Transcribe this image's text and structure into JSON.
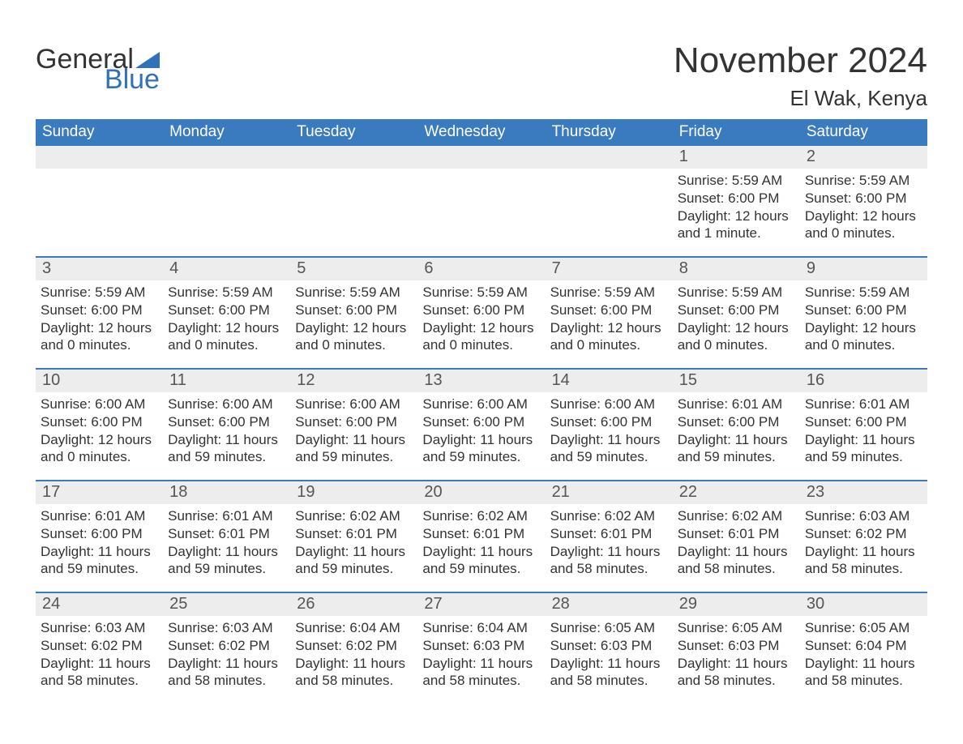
{
  "brand": {
    "word1": "General",
    "word2": "Blue"
  },
  "colors": {
    "accent": "#3a7bbf",
    "logo_blue": "#2f72b9",
    "header_text": "#ffffff",
    "text": "#333333",
    "daynum_bg": "#ededed",
    "daynum_text": "#555555",
    "background": "#ffffff"
  },
  "fonts": {
    "month_title_size": 44,
    "location_size": 26,
    "weekday_size": 19,
    "daynum_size": 20,
    "body_size": 17,
    "logo_size": 34
  },
  "title": "November 2024",
  "location": "El Wak, Kenya",
  "weekdays": [
    "Sunday",
    "Monday",
    "Tuesday",
    "Wednesday",
    "Thursday",
    "Friday",
    "Saturday"
  ],
  "weeks": [
    [
      {
        "day": "",
        "sunrise": "",
        "sunset": "",
        "daylight": ""
      },
      {
        "day": "",
        "sunrise": "",
        "sunset": "",
        "daylight": ""
      },
      {
        "day": "",
        "sunrise": "",
        "sunset": "",
        "daylight": ""
      },
      {
        "day": "",
        "sunrise": "",
        "sunset": "",
        "daylight": ""
      },
      {
        "day": "",
        "sunrise": "",
        "sunset": "",
        "daylight": ""
      },
      {
        "day": "1",
        "sunrise": "Sunrise: 5:59 AM",
        "sunset": "Sunset: 6:00 PM",
        "daylight": "Daylight: 12 hours and 1 minute."
      },
      {
        "day": "2",
        "sunrise": "Sunrise: 5:59 AM",
        "sunset": "Sunset: 6:00 PM",
        "daylight": "Daylight: 12 hours and 0 minutes."
      }
    ],
    [
      {
        "day": "3",
        "sunrise": "Sunrise: 5:59 AM",
        "sunset": "Sunset: 6:00 PM",
        "daylight": "Daylight: 12 hours and 0 minutes."
      },
      {
        "day": "4",
        "sunrise": "Sunrise: 5:59 AM",
        "sunset": "Sunset: 6:00 PM",
        "daylight": "Daylight: 12 hours and 0 minutes."
      },
      {
        "day": "5",
        "sunrise": "Sunrise: 5:59 AM",
        "sunset": "Sunset: 6:00 PM",
        "daylight": "Daylight: 12 hours and 0 minutes."
      },
      {
        "day": "6",
        "sunrise": "Sunrise: 5:59 AM",
        "sunset": "Sunset: 6:00 PM",
        "daylight": "Daylight: 12 hours and 0 minutes."
      },
      {
        "day": "7",
        "sunrise": "Sunrise: 5:59 AM",
        "sunset": "Sunset: 6:00 PM",
        "daylight": "Daylight: 12 hours and 0 minutes."
      },
      {
        "day": "8",
        "sunrise": "Sunrise: 5:59 AM",
        "sunset": "Sunset: 6:00 PM",
        "daylight": "Daylight: 12 hours and 0 minutes."
      },
      {
        "day": "9",
        "sunrise": "Sunrise: 5:59 AM",
        "sunset": "Sunset: 6:00 PM",
        "daylight": "Daylight: 12 hours and 0 minutes."
      }
    ],
    [
      {
        "day": "10",
        "sunrise": "Sunrise: 6:00 AM",
        "sunset": "Sunset: 6:00 PM",
        "daylight": "Daylight: 12 hours and 0 minutes."
      },
      {
        "day": "11",
        "sunrise": "Sunrise: 6:00 AM",
        "sunset": "Sunset: 6:00 PM",
        "daylight": "Daylight: 11 hours and 59 minutes."
      },
      {
        "day": "12",
        "sunrise": "Sunrise: 6:00 AM",
        "sunset": "Sunset: 6:00 PM",
        "daylight": "Daylight: 11 hours and 59 minutes."
      },
      {
        "day": "13",
        "sunrise": "Sunrise: 6:00 AM",
        "sunset": "Sunset: 6:00 PM",
        "daylight": "Daylight: 11 hours and 59 minutes."
      },
      {
        "day": "14",
        "sunrise": "Sunrise: 6:00 AM",
        "sunset": "Sunset: 6:00 PM",
        "daylight": "Daylight: 11 hours and 59 minutes."
      },
      {
        "day": "15",
        "sunrise": "Sunrise: 6:01 AM",
        "sunset": "Sunset: 6:00 PM",
        "daylight": "Daylight: 11 hours and 59 minutes."
      },
      {
        "day": "16",
        "sunrise": "Sunrise: 6:01 AM",
        "sunset": "Sunset: 6:00 PM",
        "daylight": "Daylight: 11 hours and 59 minutes."
      }
    ],
    [
      {
        "day": "17",
        "sunrise": "Sunrise: 6:01 AM",
        "sunset": "Sunset: 6:00 PM",
        "daylight": "Daylight: 11 hours and 59 minutes."
      },
      {
        "day": "18",
        "sunrise": "Sunrise: 6:01 AM",
        "sunset": "Sunset: 6:01 PM",
        "daylight": "Daylight: 11 hours and 59 minutes."
      },
      {
        "day": "19",
        "sunrise": "Sunrise: 6:02 AM",
        "sunset": "Sunset: 6:01 PM",
        "daylight": "Daylight: 11 hours and 59 minutes."
      },
      {
        "day": "20",
        "sunrise": "Sunrise: 6:02 AM",
        "sunset": "Sunset: 6:01 PM",
        "daylight": "Daylight: 11 hours and 59 minutes."
      },
      {
        "day": "21",
        "sunrise": "Sunrise: 6:02 AM",
        "sunset": "Sunset: 6:01 PM",
        "daylight": "Daylight: 11 hours and 58 minutes."
      },
      {
        "day": "22",
        "sunrise": "Sunrise: 6:02 AM",
        "sunset": "Sunset: 6:01 PM",
        "daylight": "Daylight: 11 hours and 58 minutes."
      },
      {
        "day": "23",
        "sunrise": "Sunrise: 6:03 AM",
        "sunset": "Sunset: 6:02 PM",
        "daylight": "Daylight: 11 hours and 58 minutes."
      }
    ],
    [
      {
        "day": "24",
        "sunrise": "Sunrise: 6:03 AM",
        "sunset": "Sunset: 6:02 PM",
        "daylight": "Daylight: 11 hours and 58 minutes."
      },
      {
        "day": "25",
        "sunrise": "Sunrise: 6:03 AM",
        "sunset": "Sunset: 6:02 PM",
        "daylight": "Daylight: 11 hours and 58 minutes."
      },
      {
        "day": "26",
        "sunrise": "Sunrise: 6:04 AM",
        "sunset": "Sunset: 6:02 PM",
        "daylight": "Daylight: 11 hours and 58 minutes."
      },
      {
        "day": "27",
        "sunrise": "Sunrise: 6:04 AM",
        "sunset": "Sunset: 6:03 PM",
        "daylight": "Daylight: 11 hours and 58 minutes."
      },
      {
        "day": "28",
        "sunrise": "Sunrise: 6:05 AM",
        "sunset": "Sunset: 6:03 PM",
        "daylight": "Daylight: 11 hours and 58 minutes."
      },
      {
        "day": "29",
        "sunrise": "Sunrise: 6:05 AM",
        "sunset": "Sunset: 6:03 PM",
        "daylight": "Daylight: 11 hours and 58 minutes."
      },
      {
        "day": "30",
        "sunrise": "Sunrise: 6:05 AM",
        "sunset": "Sunset: 6:04 PM",
        "daylight": "Daylight: 11 hours and 58 minutes."
      }
    ]
  ]
}
